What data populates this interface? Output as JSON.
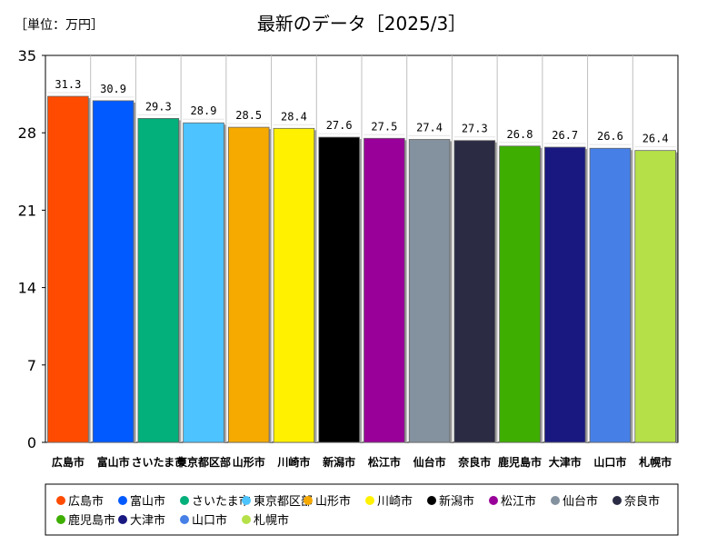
{
  "chart_data": {
    "type": "bar",
    "title": "最新のデータ［2025/3］",
    "unit_label": "［単位：万円］",
    "ylim": [
      0,
      35
    ],
    "yticks": [
      "0",
      "7",
      "14",
      "21",
      "28",
      "35"
    ],
    "ytick_values": [
      0,
      7,
      14,
      21,
      28,
      35
    ],
    "grid": false,
    "legend_position": "bottom",
    "categories": [
      "広島市",
      "富山市",
      "さいたま市",
      "東京都区部",
      "山形市",
      "川崎市",
      "新潟市",
      "松江市",
      "仙台市",
      "奈良市",
      "鹿児島市",
      "大津市",
      "山口市",
      "札幌市"
    ],
    "values": [
      31.3,
      30.9,
      29.3,
      28.9,
      28.5,
      28.4,
      27.6,
      27.5,
      27.4,
      27.3,
      26.8,
      26.7,
      26.6,
      26.4
    ],
    "value_labels": [
      "31.3",
      "30.9",
      "29.3",
      "28.9",
      "28.5",
      "28.4",
      "27.6",
      "27.5",
      "27.4",
      "27.3",
      "26.8",
      "26.7",
      "26.6",
      "26.4"
    ],
    "colors": [
      "#FF4B00",
      "#005AFF",
      "#03AF7A",
      "#4DC4FF",
      "#F6AA00",
      "#FFF100",
      "#000000",
      "#990099",
      "#84919E",
      "#2B2B44",
      "#3EAE00",
      "#181880",
      "#4680E6",
      "#B5E048"
    ]
  }
}
